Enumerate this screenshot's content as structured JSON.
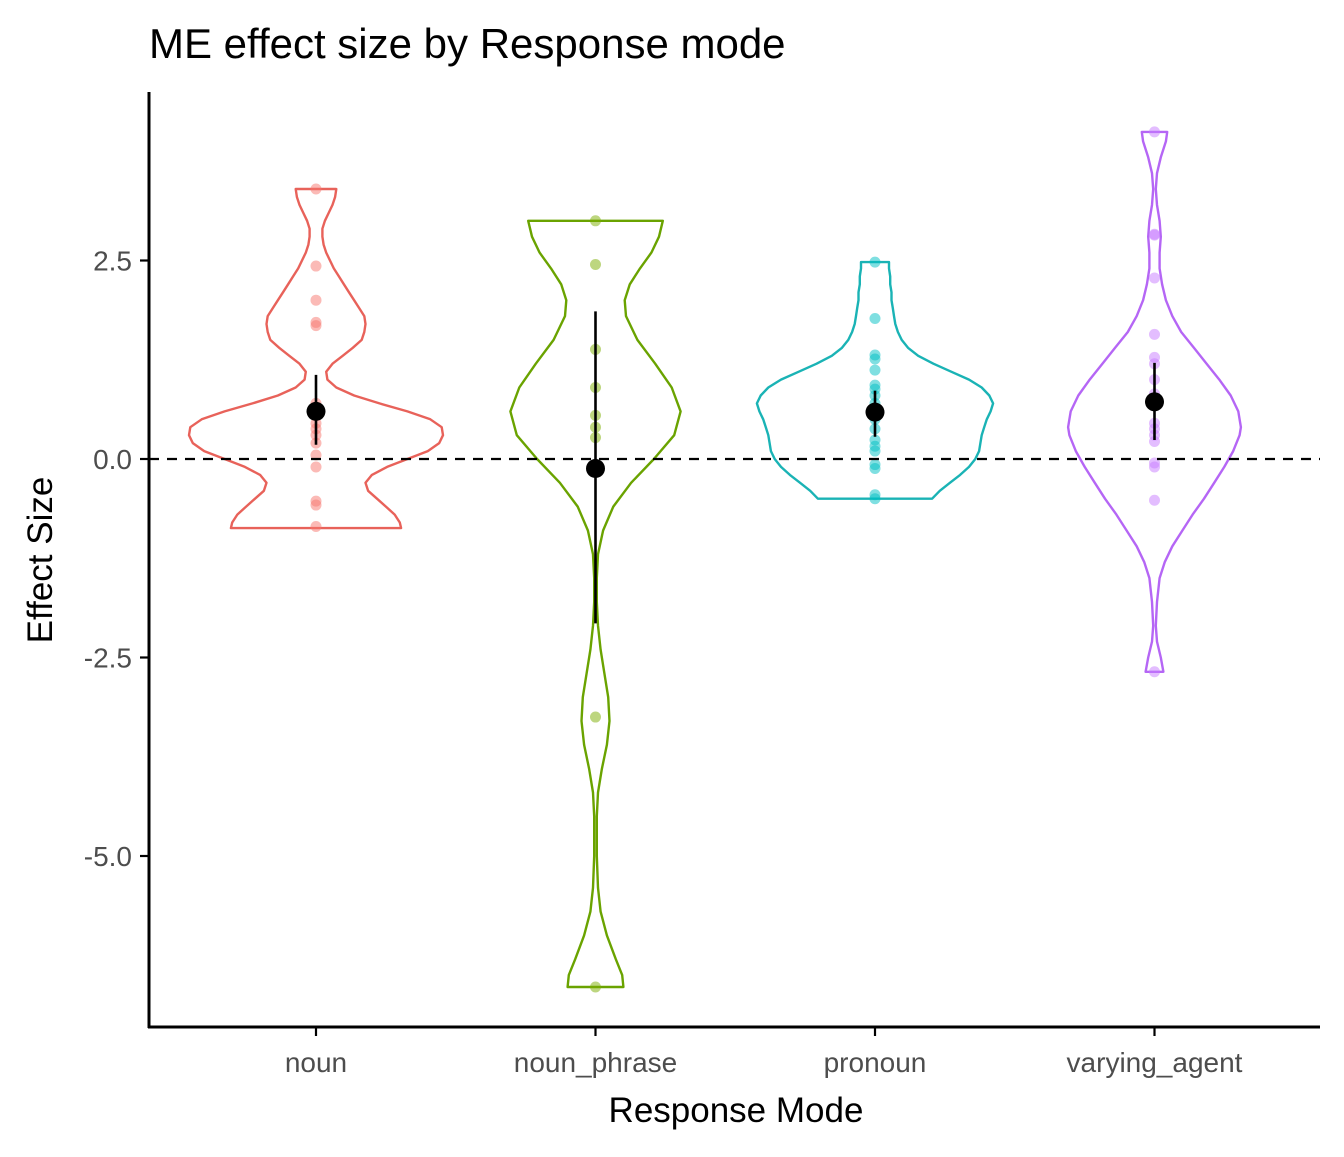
{
  "chart_data": {
    "type": "violin",
    "title": "ME effect size by Response mode",
    "xlabel": "Response Mode",
    "ylabel": "Effect Size",
    "categories": [
      "noun",
      "noun_phrase",
      "pronoun",
      "varying_agent"
    ],
    "colors": [
      "#F8766D",
      "#7CAE00",
      "#00BFC4",
      "#C77CFF"
    ],
    "violin_line_colors": [
      "#E8625A",
      "#6AA300",
      "#1AB3B5",
      "#B566F5"
    ],
    "yticks": [
      2.5,
      0.0,
      -2.5,
      -5.0
    ],
    "ytick_labels": [
      "2.5",
      "0.0",
      "-2.5",
      "-5.0"
    ],
    "ylim": [
      -7.1,
      4.6
    ],
    "reference_line": 0,
    "grid": false,
    "groups": [
      {
        "name": "noun",
        "points": [
          3.4,
          2.43,
          2.0,
          1.72,
          1.68,
          0.7,
          0.55,
          0.45,
          0.38,
          0.3,
          0.2,
          0.05,
          -0.1,
          -0.53,
          -0.58,
          -0.85
        ],
        "mean": 0.6,
        "ci": [
          0.18,
          1.06
        ],
        "violin": {
          "ymin": -0.87,
          "ymax": 3.4,
          "profile": [
            [
              -0.87,
              0.67
            ],
            [
              -0.8,
              0.66
            ],
            [
              -0.7,
              0.62
            ],
            [
              -0.6,
              0.55
            ],
            [
              -0.5,
              0.48
            ],
            [
              -0.4,
              0.41
            ],
            [
              -0.3,
              0.39
            ],
            [
              -0.2,
              0.44
            ],
            [
              -0.1,
              0.56
            ],
            [
              0.0,
              0.72
            ],
            [
              0.1,
              0.88
            ],
            [
              0.2,
              0.97
            ],
            [
              0.3,
              1.0
            ],
            [
              0.4,
              0.99
            ],
            [
              0.5,
              0.9
            ],
            [
              0.6,
              0.72
            ],
            [
              0.7,
              0.5
            ],
            [
              0.8,
              0.3
            ],
            [
              0.9,
              0.16
            ],
            [
              1.0,
              0.09
            ],
            [
              1.1,
              0.08
            ],
            [
              1.2,
              0.13
            ],
            [
              1.3,
              0.21
            ],
            [
              1.4,
              0.29
            ],
            [
              1.5,
              0.36
            ],
            [
              1.6,
              0.38
            ],
            [
              1.7,
              0.39
            ],
            [
              1.8,
              0.38
            ],
            [
              1.9,
              0.34
            ],
            [
              2.0,
              0.3
            ],
            [
              2.1,
              0.26
            ],
            [
              2.2,
              0.22
            ],
            [
              2.3,
              0.18
            ],
            [
              2.4,
              0.14
            ],
            [
              2.5,
              0.11
            ],
            [
              2.6,
              0.08
            ],
            [
              2.7,
              0.06
            ],
            [
              2.8,
              0.05
            ],
            [
              2.9,
              0.05
            ],
            [
              3.0,
              0.07
            ],
            [
              3.1,
              0.1
            ],
            [
              3.2,
              0.13
            ],
            [
              3.3,
              0.15
            ],
            [
              3.4,
              0.16
            ]
          ]
        }
      },
      {
        "name": "noun_phrase",
        "points": [
          3.0,
          2.45,
          1.38,
          0.9,
          0.55,
          0.4,
          0.27,
          -3.25,
          -6.65
        ],
        "mean": -0.12,
        "ci": [
          -2.07,
          1.86
        ],
        "violin": {
          "ymin": -6.65,
          "ymax": 3.0,
          "profile": [
            [
              -6.65,
              0.22
            ],
            [
              -6.5,
              0.21
            ],
            [
              -6.3,
              0.16
            ],
            [
              -6.0,
              0.09
            ],
            [
              -5.7,
              0.04
            ],
            [
              -5.4,
              0.02
            ],
            [
              -5.0,
              0.01
            ],
            [
              -4.5,
              0.01
            ],
            [
              -4.2,
              0.02
            ],
            [
              -3.9,
              0.05
            ],
            [
              -3.6,
              0.09
            ],
            [
              -3.3,
              0.11
            ],
            [
              -3.0,
              0.1
            ],
            [
              -2.7,
              0.07
            ],
            [
              -2.4,
              0.04
            ],
            [
              -2.1,
              0.02
            ],
            [
              -1.8,
              0.01
            ],
            [
              -1.5,
              0.01
            ],
            [
              -1.2,
              0.02
            ],
            [
              -0.9,
              0.06
            ],
            [
              -0.6,
              0.14
            ],
            [
              -0.3,
              0.28
            ],
            [
              0.0,
              0.46
            ],
            [
              0.3,
              0.62
            ],
            [
              0.6,
              0.67
            ],
            [
              0.9,
              0.6
            ],
            [
              1.2,
              0.47
            ],
            [
              1.5,
              0.33
            ],
            [
              1.8,
              0.24
            ],
            [
              2.0,
              0.23
            ],
            [
              2.2,
              0.27
            ],
            [
              2.4,
              0.35
            ],
            [
              2.6,
              0.44
            ],
            [
              2.8,
              0.5
            ],
            [
              3.0,
              0.53
            ]
          ]
        }
      },
      {
        "name": "pronoun",
        "points": [
          2.48,
          1.77,
          1.31,
          1.26,
          1.12,
          0.93,
          0.88,
          0.8,
          0.7,
          0.6,
          0.5,
          0.38,
          0.24,
          0.16,
          0.1,
          -0.07,
          -0.12,
          -0.45,
          -0.5
        ],
        "mean": 0.59,
        "ci": [
          0.28,
          0.86
        ],
        "violin": {
          "ymin": -0.5,
          "ymax": 2.48,
          "profile": [
            [
              -0.5,
              0.45
            ],
            [
              -0.4,
              0.51
            ],
            [
              -0.3,
              0.59
            ],
            [
              -0.2,
              0.67
            ],
            [
              -0.1,
              0.74
            ],
            [
              0.0,
              0.79
            ],
            [
              0.1,
              0.82
            ],
            [
              0.2,
              0.83
            ],
            [
              0.3,
              0.84
            ],
            [
              0.4,
              0.86
            ],
            [
              0.5,
              0.88
            ],
            [
              0.6,
              0.91
            ],
            [
              0.7,
              0.93
            ],
            [
              0.8,
              0.9
            ],
            [
              0.9,
              0.84
            ],
            [
              1.0,
              0.74
            ],
            [
              1.1,
              0.6
            ],
            [
              1.2,
              0.46
            ],
            [
              1.3,
              0.34
            ],
            [
              1.4,
              0.26
            ],
            [
              1.5,
              0.21
            ],
            [
              1.6,
              0.18
            ],
            [
              1.7,
              0.16
            ],
            [
              1.8,
              0.15
            ],
            [
              1.9,
              0.14
            ],
            [
              2.0,
              0.13
            ],
            [
              2.1,
              0.13
            ],
            [
              2.2,
              0.12
            ],
            [
              2.3,
              0.12
            ],
            [
              2.4,
              0.11
            ],
            [
              2.48,
              0.11
            ]
          ]
        }
      },
      {
        "name": "varying_agent",
        "points": [
          4.12,
          2.83,
          2.82,
          2.28,
          1.57,
          1.28,
          1.2,
          1.0,
          0.82,
          0.45,
          0.38,
          0.3,
          0.22,
          -0.05,
          -0.1,
          -0.52,
          -2.68
        ],
        "mean": 0.72,
        "ci": [
          0.24,
          1.21
        ],
        "violin": {
          "ymin": -2.68,
          "ymax": 4.12,
          "profile": [
            [
              -2.68,
              0.07
            ],
            [
              -2.5,
              0.05
            ],
            [
              -2.3,
              0.02
            ],
            [
              -2.1,
              0.01
            ],
            [
              -1.8,
              0.02
            ],
            [
              -1.5,
              0.04
            ],
            [
              -1.3,
              0.08
            ],
            [
              -1.1,
              0.14
            ],
            [
              -0.9,
              0.22
            ],
            [
              -0.7,
              0.3
            ],
            [
              -0.5,
              0.39
            ],
            [
              -0.3,
              0.47
            ],
            [
              -0.1,
              0.55
            ],
            [
              0.1,
              0.62
            ],
            [
              0.3,
              0.67
            ],
            [
              0.4,
              0.68
            ],
            [
              0.6,
              0.66
            ],
            [
              0.8,
              0.6
            ],
            [
              1.0,
              0.51
            ],
            [
              1.2,
              0.41
            ],
            [
              1.4,
              0.31
            ],
            [
              1.6,
              0.21
            ],
            [
              1.8,
              0.14
            ],
            [
              2.0,
              0.09
            ],
            [
              2.2,
              0.06
            ],
            [
              2.4,
              0.04
            ],
            [
              2.6,
              0.04
            ],
            [
              2.8,
              0.05
            ],
            [
              3.0,
              0.04
            ],
            [
              3.2,
              0.02
            ],
            [
              3.4,
              0.01
            ],
            [
              3.6,
              0.02
            ],
            [
              3.8,
              0.05
            ],
            [
              4.0,
              0.09
            ],
            [
              4.12,
              0.1
            ]
          ]
        }
      }
    ]
  }
}
